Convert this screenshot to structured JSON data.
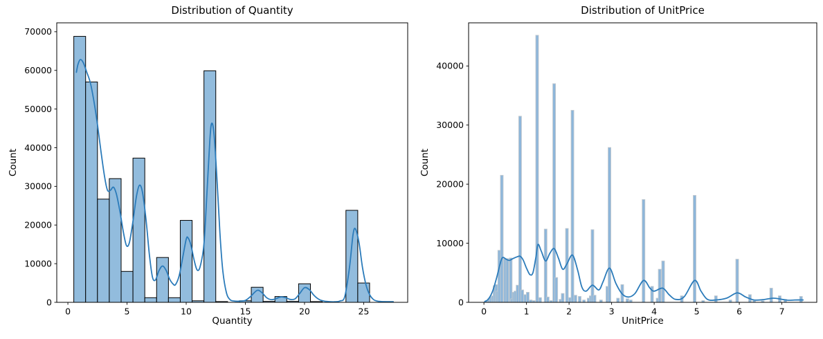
{
  "figure": {
    "background": "#ffffff"
  },
  "chart_data": [
    {
      "type": "histogram",
      "title": "Distribution of Quantity",
      "xlabel": "Quantity",
      "ylabel": "Count",
      "legend": "none",
      "grid": false,
      "xlim": [
        -0.94,
        28.72
      ],
      "ylim": [
        0,
        72300
      ],
      "xticks": [
        0,
        5,
        10,
        15,
        20,
        25
      ],
      "yticks": [
        0,
        10000,
        20000,
        30000,
        40000,
        50000,
        60000,
        70000
      ],
      "bin_width": 1,
      "bars": [
        [
          1,
          68800
        ],
        [
          2,
          57000
        ],
        [
          3,
          26700
        ],
        [
          4,
          32000
        ],
        [
          5,
          8000
        ],
        [
          6,
          37300
        ],
        [
          7,
          1200
        ],
        [
          8,
          11600
        ],
        [
          9,
          1200
        ],
        [
          10,
          21200
        ],
        [
          11,
          400
        ],
        [
          12,
          59900
        ],
        [
          13,
          200
        ],
        [
          15,
          400
        ],
        [
          16,
          3900
        ],
        [
          17,
          250
        ],
        [
          18,
          1500
        ],
        [
          19,
          250
        ],
        [
          20,
          4800
        ],
        [
          21,
          200
        ],
        [
          24,
          23800
        ],
        [
          25,
          5000
        ],
        [
          27,
          200
        ]
      ],
      "kde": [
        [
          0.72,
          59500
        ],
        [
          0.85,
          61500
        ],
        [
          1.05,
          62800
        ],
        [
          1.3,
          62000
        ],
        [
          1.6,
          59500
        ],
        [
          1.9,
          56800
        ],
        [
          2.2,
          52000
        ],
        [
          2.5,
          46000
        ],
        [
          2.8,
          39000
        ],
        [
          3.1,
          32500
        ],
        [
          3.35,
          29000
        ],
        [
          3.6,
          29000
        ],
        [
          3.85,
          29800
        ],
        [
          4.1,
          28000
        ],
        [
          4.4,
          23500
        ],
        [
          4.7,
          18000
        ],
        [
          4.95,
          14700
        ],
        [
          5.2,
          15500
        ],
        [
          5.5,
          21000
        ],
        [
          5.8,
          27500
        ],
        [
          6.05,
          30300
        ],
        [
          6.3,
          28500
        ],
        [
          6.6,
          21500
        ],
        [
          6.9,
          12000
        ],
        [
          7.15,
          6500
        ],
        [
          7.4,
          5800
        ],
        [
          7.7,
          8200
        ],
        [
          8.0,
          9400
        ],
        [
          8.3,
          8300
        ],
        [
          8.6,
          6000
        ],
        [
          8.9,
          4700
        ],
        [
          9.1,
          4600
        ],
        [
          9.4,
          6800
        ],
        [
          9.7,
          11500
        ],
        [
          10.0,
          16300
        ],
        [
          10.15,
          16700
        ],
        [
          10.4,
          14800
        ],
        [
          10.7,
          10500
        ],
        [
          10.95,
          8300
        ],
        [
          11.2,
          9500
        ],
        [
          11.5,
          15000
        ],
        [
          11.75,
          28000
        ],
        [
          12.0,
          42000
        ],
        [
          12.15,
          46300
        ],
        [
          12.35,
          43500
        ],
        [
          12.6,
          32000
        ],
        [
          12.85,
          18000
        ],
        [
          13.1,
          8000
        ],
        [
          13.4,
          2500
        ],
        [
          13.7,
          700
        ],
        [
          14.0,
          350
        ],
        [
          14.5,
          300
        ],
        [
          15.0,
          500
        ],
        [
          15.4,
          1400
        ],
        [
          16.0,
          3100
        ],
        [
          16.4,
          2500
        ],
        [
          16.8,
          1200
        ],
        [
          17.2,
          700
        ],
        [
          17.6,
          950
        ],
        [
          18.0,
          1400
        ],
        [
          18.4,
          1200
        ],
        [
          18.8,
          750
        ],
        [
          19.2,
          900
        ],
        [
          19.6,
          2300
        ],
        [
          20.0,
          3800
        ],
        [
          20.4,
          3300
        ],
        [
          20.8,
          1800
        ],
        [
          21.2,
          800
        ],
        [
          21.6,
          350
        ],
        [
          22.0,
          200
        ],
        [
          22.5,
          150
        ],
        [
          23.0,
          350
        ],
        [
          23.4,
          1500
        ],
        [
          23.8,
          9000
        ],
        [
          24.1,
          17500
        ],
        [
          24.3,
          19000
        ],
        [
          24.6,
          15500
        ],
        [
          24.9,
          9000
        ],
        [
          25.2,
          4500
        ],
        [
          25.5,
          2000
        ],
        [
          25.8,
          800
        ],
        [
          26.1,
          350
        ],
        [
          26.5,
          200
        ],
        [
          27.0,
          160
        ],
        [
          27.5,
          150
        ]
      ],
      "colors": {
        "bar_fill": "#92bcdd",
        "bar_edge": "#000000",
        "kde": "#2b7bba"
      }
    },
    {
      "type": "histogram",
      "title": "Distribution of UnitPrice",
      "xlabel": "UnitPrice",
      "ylabel": "Count",
      "legend": "none",
      "grid": false,
      "xlim": [
        -0.36,
        7.82
      ],
      "ylim": [
        0,
        47300
      ],
      "xticks": [
        0,
        1,
        2,
        3,
        4,
        5,
        6,
        7
      ],
      "yticks": [
        0,
        10000,
        20000,
        30000,
        40000
      ],
      "bin_width": 0.065,
      "bars": [
        [
          0.08,
          300
        ],
        [
          0.12,
          600
        ],
        [
          0.16,
          900
        ],
        [
          0.21,
          1100
        ],
        [
          0.25,
          2800
        ],
        [
          0.29,
          3000
        ],
        [
          0.32,
          1900
        ],
        [
          0.36,
          8800
        ],
        [
          0.42,
          21500
        ],
        [
          0.5,
          7400
        ],
        [
          0.55,
          7400
        ],
        [
          0.63,
          7500
        ],
        [
          0.66,
          600
        ],
        [
          0.7,
          1700
        ],
        [
          0.74,
          1900
        ],
        [
          0.79,
          2900
        ],
        [
          0.85,
          31500
        ],
        [
          0.9,
          2100
        ],
        [
          0.97,
          1300
        ],
        [
          1.03,
          1700
        ],
        [
          1.1,
          400
        ],
        [
          1.17,
          300
        ],
        [
          1.25,
          45200
        ],
        [
          1.32,
          800
        ],
        [
          1.45,
          12400
        ],
        [
          1.5,
          900
        ],
        [
          1.58,
          300
        ],
        [
          1.65,
          37000
        ],
        [
          1.7,
          4200
        ],
        [
          1.8,
          500
        ],
        [
          1.85,
          1500
        ],
        [
          1.95,
          12500
        ],
        [
          2.02,
          800
        ],
        [
          2.08,
          32500
        ],
        [
          2.15,
          1200
        ],
        [
          2.25,
          1000
        ],
        [
          2.35,
          400
        ],
        [
          2.46,
          700
        ],
        [
          2.51,
          1100
        ],
        [
          2.55,
          12300
        ],
        [
          2.6,
          1200
        ],
        [
          2.75,
          400
        ],
        [
          2.9,
          2700
        ],
        [
          2.95,
          26200
        ],
        [
          3.15,
          700
        ],
        [
          3.25,
          3000
        ],
        [
          3.37,
          600
        ],
        [
          3.45,
          400
        ],
        [
          3.75,
          17400
        ],
        [
          3.95,
          2700
        ],
        [
          4.08,
          700
        ],
        [
          4.13,
          5600
        ],
        [
          4.21,
          7000
        ],
        [
          4.65,
          1100
        ],
        [
          4.95,
          18100
        ],
        [
          5.15,
          300
        ],
        [
          5.45,
          1100
        ],
        [
          5.79,
          400
        ],
        [
          5.95,
          7300
        ],
        [
          6.25,
          1300
        ],
        [
          6.35,
          300
        ],
        [
          6.55,
          250
        ],
        [
          6.75,
          2400
        ],
        [
          6.95,
          1100
        ],
        [
          7.08,
          500
        ],
        [
          7.45,
          1000
        ]
      ],
      "kde": [
        [
          0.02,
          150
        ],
        [
          0.1,
          500
        ],
        [
          0.2,
          1800
        ],
        [
          0.3,
          4200
        ],
        [
          0.4,
          7000
        ],
        [
          0.45,
          7600
        ],
        [
          0.52,
          7300
        ],
        [
          0.6,
          7100
        ],
        [
          0.68,
          7400
        ],
        [
          0.78,
          7700
        ],
        [
          0.85,
          7800
        ],
        [
          0.92,
          7200
        ],
        [
          1.0,
          5800
        ],
        [
          1.08,
          4700
        ],
        [
          1.15,
          5000
        ],
        [
          1.22,
          7600
        ],
        [
          1.27,
          9800
        ],
        [
          1.35,
          8600
        ],
        [
          1.45,
          7000
        ],
        [
          1.55,
          8300
        ],
        [
          1.65,
          9100
        ],
        [
          1.75,
          7500
        ],
        [
          1.85,
          5600
        ],
        [
          1.95,
          6500
        ],
        [
          2.08,
          8000
        ],
        [
          2.2,
          5500
        ],
        [
          2.3,
          2600
        ],
        [
          2.4,
          1900
        ],
        [
          2.55,
          2900
        ],
        [
          2.7,
          2100
        ],
        [
          2.8,
          3500
        ],
        [
          2.95,
          5800
        ],
        [
          3.1,
          3200
        ],
        [
          3.25,
          1400
        ],
        [
          3.4,
          900
        ],
        [
          3.55,
          1500
        ],
        [
          3.75,
          3700
        ],
        [
          3.9,
          2400
        ],
        [
          4.0,
          1900
        ],
        [
          4.2,
          2400
        ],
        [
          4.35,
          1300
        ],
        [
          4.5,
          500
        ],
        [
          4.7,
          900
        ],
        [
          4.95,
          3700
        ],
        [
          5.1,
          1900
        ],
        [
          5.25,
          500
        ],
        [
          5.45,
          400
        ],
        [
          5.7,
          700
        ],
        [
          5.95,
          1600
        ],
        [
          6.15,
          900
        ],
        [
          6.35,
          400
        ],
        [
          6.55,
          450
        ],
        [
          6.8,
          700
        ],
        [
          7.0,
          500
        ],
        [
          7.15,
          350
        ],
        [
          7.3,
          400
        ],
        [
          7.5,
          400
        ]
      ],
      "colors": {
        "bar_fill": "#8db6da",
        "bar_edge": "#c2c9cf",
        "kde": "#2b7bba"
      }
    }
  ]
}
